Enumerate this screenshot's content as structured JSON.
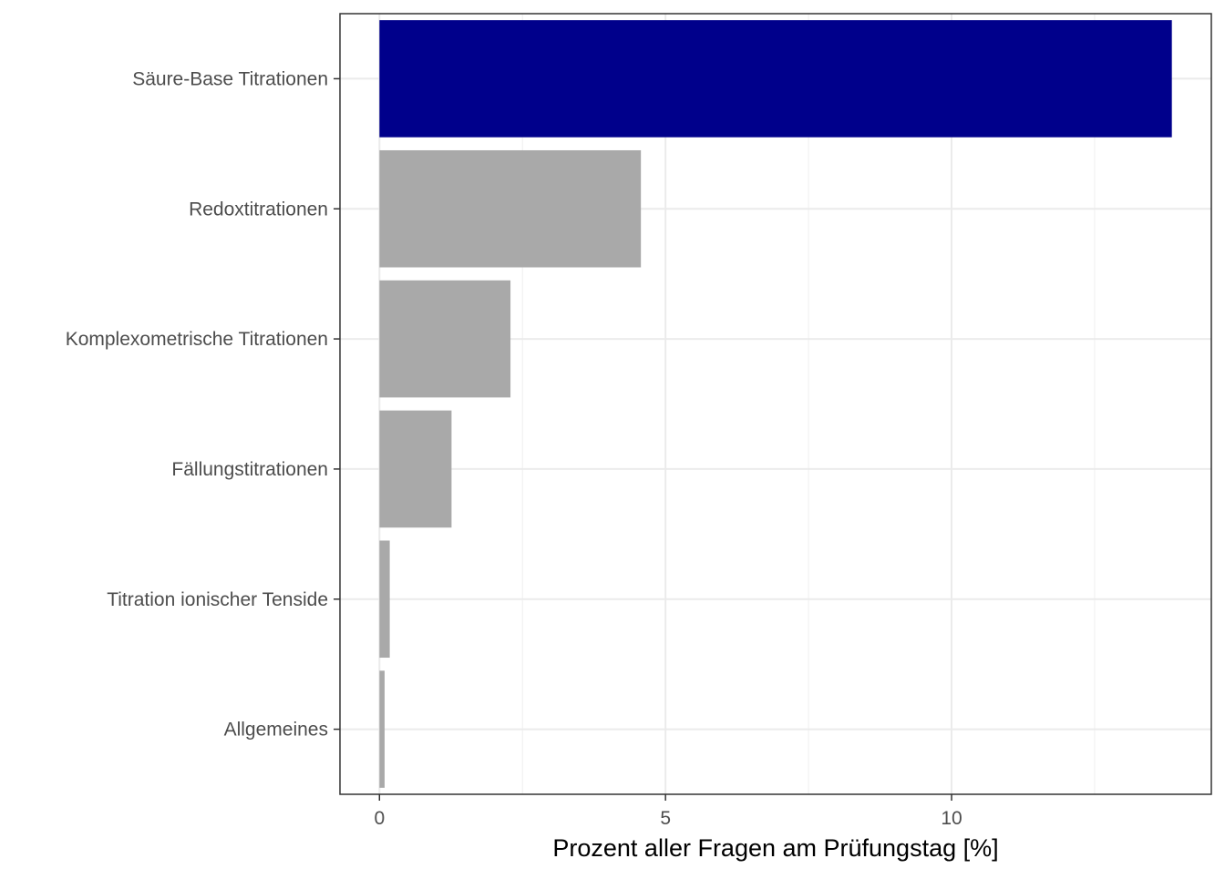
{
  "chart_data": {
    "type": "bar",
    "orientation": "horizontal",
    "categories": [
      "Säure-Base Titrationen",
      "Redoxtitrationen",
      "Komplexometrische Titrationen",
      "Fällungstitrationen",
      "Titration ionischer Tenside",
      "Allgemeines"
    ],
    "values": [
      13.85,
      4.57,
      2.29,
      1.26,
      0.18,
      0.09
    ],
    "highlight_index": 0,
    "colors": {
      "highlight": "#00008B",
      "default": "#A9A9A9",
      "grid_major": "#EBEBEB",
      "grid_minor": "#F2F2F2",
      "panel_border": "#333333"
    },
    "title": "",
    "xlabel": "Prozent aller Fragen am Prüfungstag [%]",
    "ylabel": "",
    "xlim": [
      -0.69,
      14.54
    ],
    "xticks": [
      0,
      5,
      10
    ],
    "xtick_labels": [
      "0",
      "5",
      "10"
    ],
    "grid": true,
    "legend": "none"
  }
}
